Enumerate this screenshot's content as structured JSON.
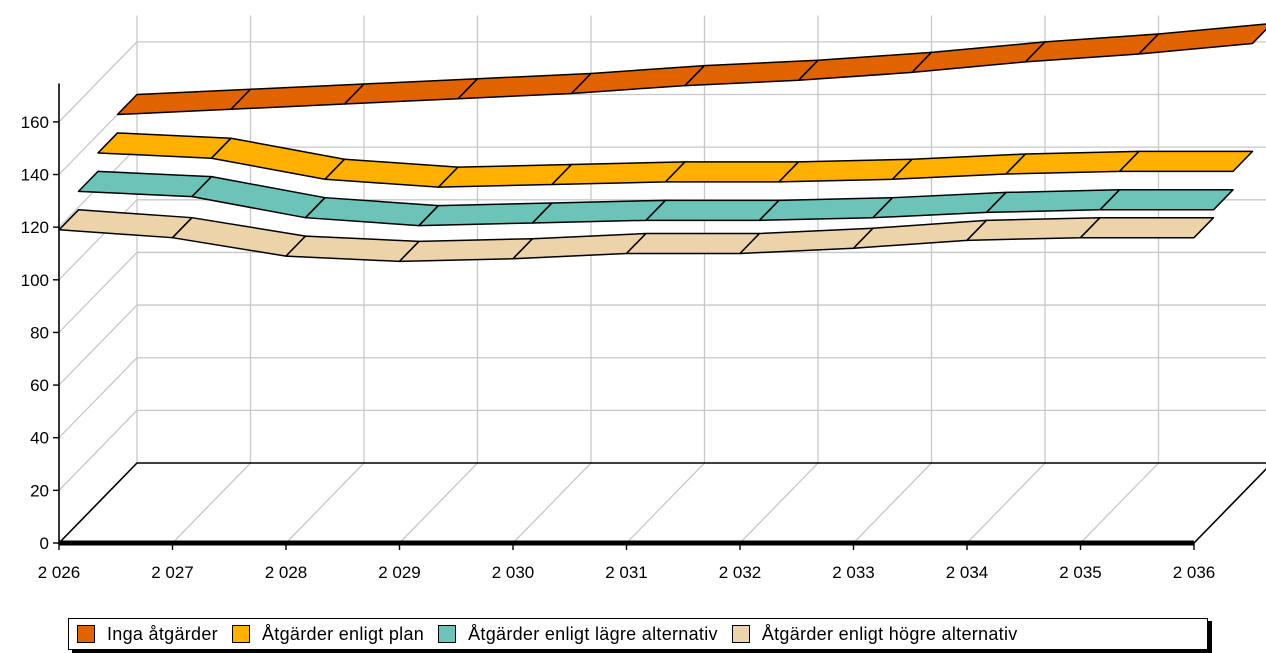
{
  "chart_data": {
    "type": "area",
    "style": "3d-stacked-ribbons",
    "x": [
      "2 026",
      "2 027",
      "2 028",
      "2 029",
      "2 030",
      "2 031",
      "2 032",
      "2 033",
      "2 034",
      "2 035",
      "2 036"
    ],
    "ylim": [
      0,
      170
    ],
    "yticks": [
      "0",
      "20",
      "40",
      "60",
      "80",
      "100",
      "120",
      "140",
      "160"
    ],
    "grid": true,
    "legend_position": "bottom",
    "series": [
      {
        "name": "Åtgärder enligt högre alternativ",
        "color": "#EDD3AA",
        "values": [
          119,
          116,
          109,
          107,
          108,
          110,
          110,
          112,
          115,
          116,
          116
        ]
      },
      {
        "name": "Åtgärder enligt lägre alternativ",
        "color": "#6CC4B8",
        "values": [
          126,
          124,
          116,
          113,
          114,
          115,
          115,
          116,
          118,
          119,
          119
        ]
      },
      {
        "name": "Åtgärder enligt plan",
        "color": "#FFB000",
        "values": [
          133,
          131,
          123,
          120,
          121,
          122,
          122,
          123,
          125,
          126,
          126
        ]
      },
      {
        "name": "Inga åtgärder",
        "color": "#E06300",
        "values": [
          140,
          142,
          144,
          146,
          148,
          151,
          153,
          156,
          160,
          163,
          167
        ]
      }
    ]
  }
}
